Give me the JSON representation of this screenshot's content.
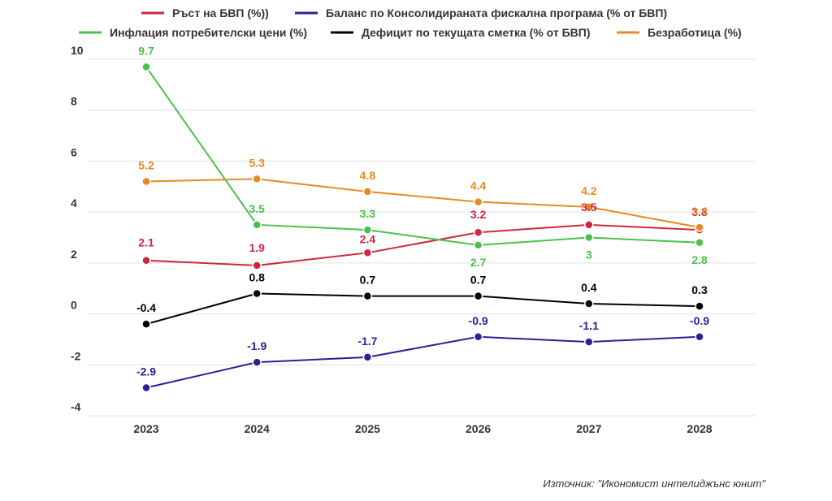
{
  "chart_data": {
    "type": "line",
    "categories": [
      "2023",
      "2024",
      "2025",
      "2026",
      "2027",
      "2028"
    ],
    "ylim": [
      -4,
      10
    ],
    "yticks": [
      -4,
      -2,
      0,
      2,
      4,
      6,
      8,
      10
    ],
    "grid": true,
    "legend_position": "top",
    "series": [
      {
        "name": "Ръст на БВП (%))",
        "color": "#d0263d",
        "values": [
          2.1,
          1.9,
          2.4,
          3.2,
          3.5,
          3.3
        ],
        "labels": [
          "2.1",
          "1.9",
          "2.4",
          "3.2",
          "3.5",
          "3.3"
        ]
      },
      {
        "name": "Баланс по Консолидираната фискална програма (% от БВП)",
        "color": "#2c2094",
        "values": [
          -2.9,
          -1.9,
          -1.7,
          -0.9,
          -1.1,
          -0.9
        ],
        "labels": [
          "-2.9",
          "-1.9",
          "-1.7",
          "-0.9",
          "-1.1",
          "-0.9"
        ]
      },
      {
        "name": "Инфлация потребителски цени (%)",
        "color": "#4cc04a",
        "values": [
          9.7,
          3.5,
          3.3,
          2.7,
          3,
          2.8
        ],
        "labels": [
          "9.7",
          "3.5",
          "3.3",
          "2.7",
          "3",
          "2.8"
        ]
      },
      {
        "name": "Дефицит по текущата сметка (% от БВП)",
        "color": "#000000",
        "values": [
          -0.4,
          0.8,
          0.7,
          0.7,
          0.4,
          0.3
        ],
        "labels": [
          "-0.4",
          "0.8",
          "0.7",
          "0.7",
          "0.4",
          "0.3"
        ]
      },
      {
        "name": "Безработица (%)",
        "color": "#e58a1f",
        "values": [
          5.2,
          5.3,
          4.8,
          4.4,
          4.2,
          3.4
        ],
        "labels": [
          "5.2",
          "5.3",
          "4.8",
          "4.4",
          "4.2",
          "3.4"
        ]
      }
    ]
  },
  "source": "Източник: \"Икономист интелиджънс юнит\""
}
